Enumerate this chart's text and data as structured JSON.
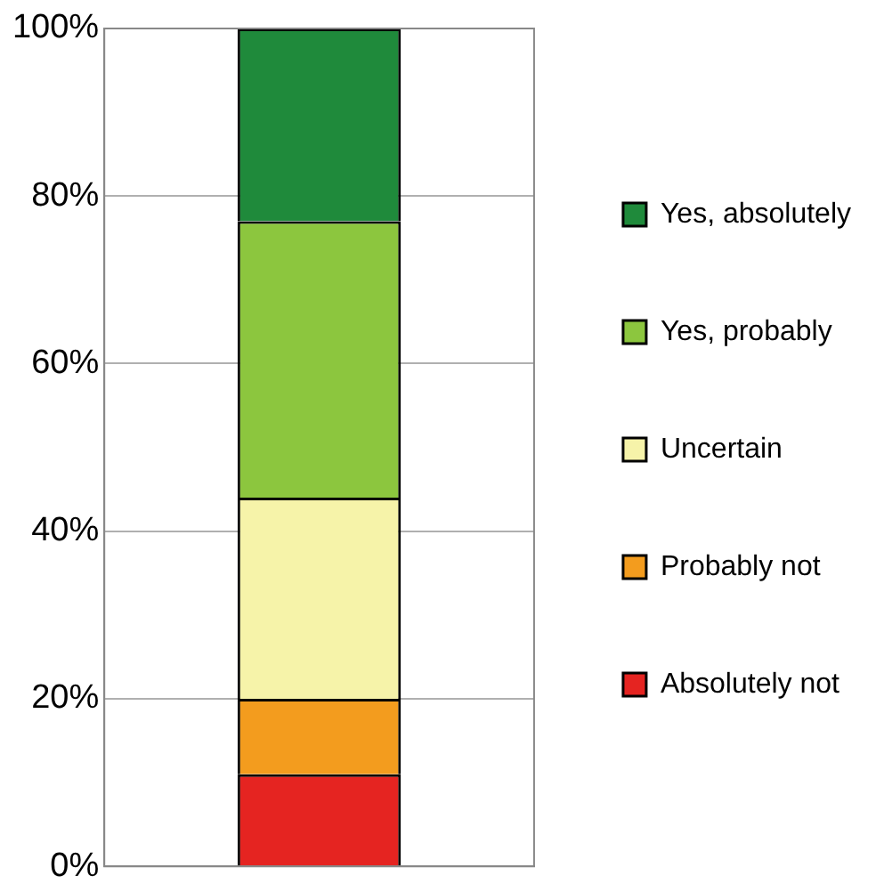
{
  "chart_data": {
    "type": "bar",
    "stacked": true,
    "categories": [
      null
    ],
    "series": [
      {
        "name": "Absolutely not",
        "color": "#e52421",
        "values": [
          11
        ]
      },
      {
        "name": "Probably not",
        "color": "#f39c1e",
        "values": [
          9
        ]
      },
      {
        "name": "Uncertain",
        "color": "#f6f3a9",
        "values": [
          24
        ]
      },
      {
        "name": "Yes, probably",
        "color": "#8cc63e",
        "values": [
          33
        ]
      },
      {
        "name": "Yes, absolutely",
        "color": "#1f8a3b",
        "values": [
          23
        ]
      }
    ],
    "ylim": [
      0,
      100
    ],
    "yticks": [
      {
        "value": 0,
        "label": "0%"
      },
      {
        "value": 20,
        "label": "20%"
      },
      {
        "value": 40,
        "label": "40%"
      },
      {
        "value": 60,
        "label": "60%"
      },
      {
        "value": 80,
        "label": "80%"
      },
      {
        "value": 100,
        "label": "100%"
      }
    ],
    "grid": "y",
    "legend": "right"
  }
}
